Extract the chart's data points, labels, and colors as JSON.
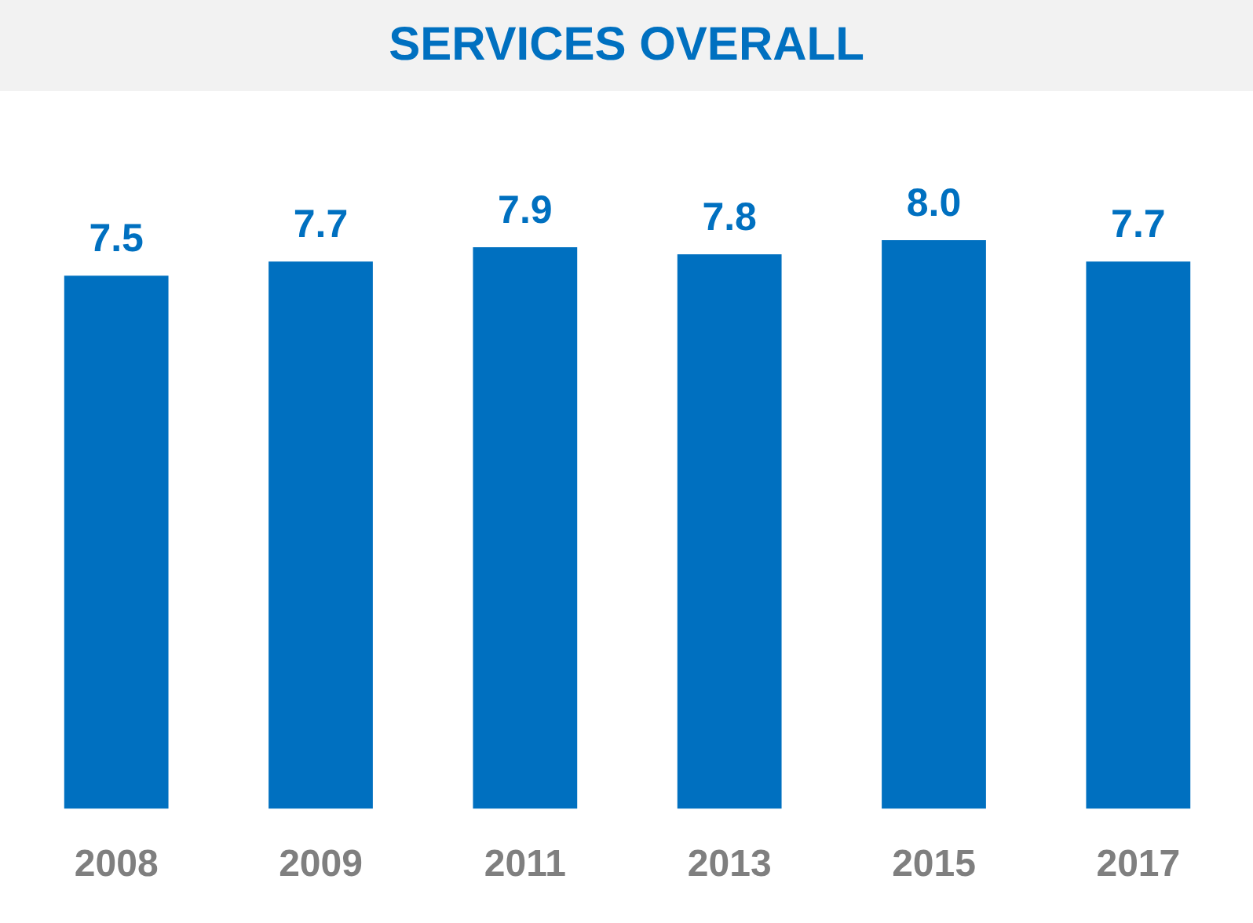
{
  "chart_data": {
    "type": "bar",
    "title": "SERVICES OVERALL",
    "categories": [
      "2008",
      "2009",
      "2011",
      "2013",
      "2015",
      "2017"
    ],
    "values": [
      7.5,
      7.7,
      7.9,
      7.8,
      8.0,
      7.7
    ],
    "value_labels": [
      "7.5",
      "7.7",
      "7.9",
      "7.8",
      "8.0",
      "7.7"
    ],
    "color": "#0070c0",
    "grid": false,
    "legend": false,
    "tick_labels": "x"
  }
}
